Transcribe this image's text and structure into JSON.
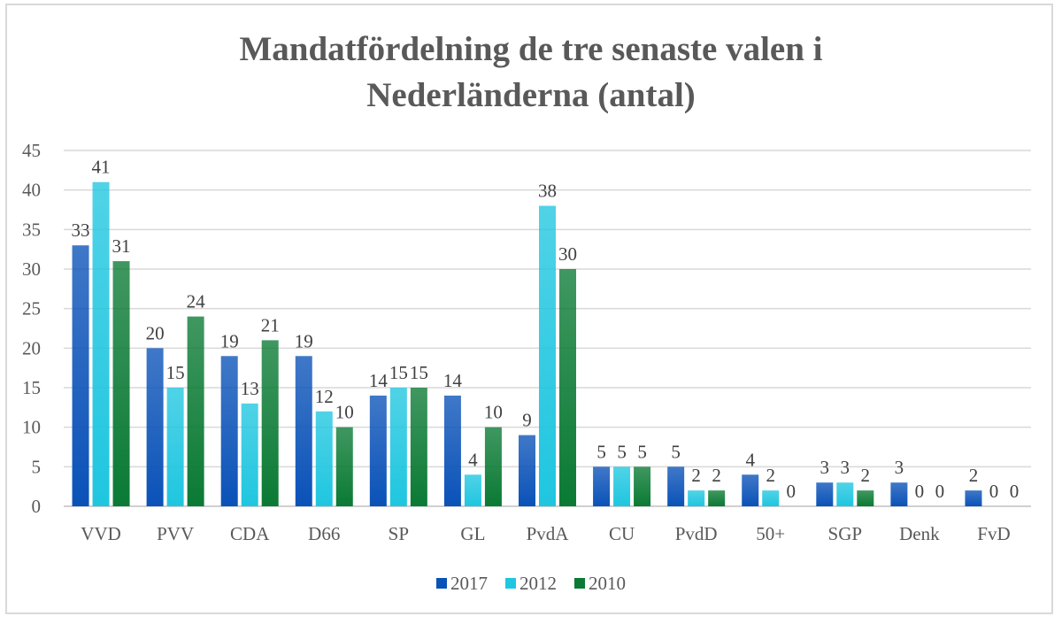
{
  "chart_data": {
    "type": "bar",
    "title": "Mandatfördelning de tre senaste valen i Nederländerna (antal)",
    "title_lines": [
      "Mandatfördelning de tre senaste valen i",
      "Nederländerna (antal)"
    ],
    "xlabel": "",
    "ylabel": "",
    "ylim": [
      0,
      45
    ],
    "yticks": [
      0,
      5,
      10,
      15,
      20,
      25,
      30,
      35,
      40,
      45
    ],
    "grid": true,
    "legend_position": "bottom",
    "categories": [
      "VVD",
      "PVV",
      "CDA",
      "D66",
      "SP",
      "GL",
      "PvdA",
      "CU",
      "PvdD",
      "50+",
      "SGP",
      "Denk",
      "FvD"
    ],
    "series": [
      {
        "name": "2017",
        "color": "#0a52b8",
        "values": [
          33,
          20,
          19,
          19,
          14,
          14,
          9,
          5,
          5,
          4,
          3,
          3,
          2
        ]
      },
      {
        "name": "2012",
        "color": "#1fc6e0",
        "values": [
          41,
          15,
          13,
          12,
          15,
          4,
          38,
          5,
          2,
          2,
          3,
          0,
          0
        ]
      },
      {
        "name": "2010",
        "color": "#0a7a34",
        "values": [
          31,
          24,
          21,
          10,
          15,
          10,
          30,
          5,
          2,
          0,
          2,
          0,
          0
        ]
      }
    ]
  }
}
